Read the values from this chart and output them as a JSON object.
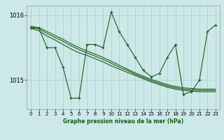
{
  "bg_color": "#cce8e8",
  "grid_color": "#aacccc",
  "line_color": "#1a5c1a",
  "xlabel": "Graphe pression niveau de la mer (hPa)",
  "xlim": [
    -0.5,
    23.5
  ],
  "ylim": [
    1014.55,
    1016.15
  ],
  "yticks": [
    1015,
    1016
  ],
  "xticks": [
    0,
    1,
    2,
    3,
    4,
    5,
    6,
    7,
    8,
    9,
    10,
    11,
    12,
    13,
    14,
    15,
    16,
    17,
    18,
    19,
    20,
    21,
    22,
    23
  ],
  "y_vol": [
    1015.8,
    1015.8,
    1015.5,
    1015.5,
    1015.2,
    1014.72,
    1014.72,
    1015.55,
    1015.55,
    1015.5,
    1016.05,
    1015.75,
    1015.55,
    1015.35,
    1015.15,
    1015.05,
    1015.1,
    1015.35,
    1015.55,
    1014.78,
    1014.82,
    1015.0,
    1015.75,
    1015.85
  ],
  "y_s1": [
    1015.8,
    1015.76,
    1015.68,
    1015.62,
    1015.55,
    1015.48,
    1015.42,
    1015.38,
    1015.33,
    1015.28,
    1015.22,
    1015.17,
    1015.12,
    1015.07,
    1015.02,
    1014.97,
    1014.93,
    1014.89,
    1014.86,
    1014.84,
    1014.83,
    1014.82,
    1014.82,
    1014.82
  ],
  "y_s2": [
    1015.82,
    1015.79,
    1015.72,
    1015.66,
    1015.6,
    1015.53,
    1015.47,
    1015.42,
    1015.37,
    1015.32,
    1015.26,
    1015.2,
    1015.15,
    1015.09,
    1015.04,
    1014.99,
    1014.95,
    1014.91,
    1014.88,
    1014.86,
    1014.85,
    1014.84,
    1014.84,
    1014.84
  ],
  "y_s3": [
    1015.83,
    1015.81,
    1015.75,
    1015.69,
    1015.63,
    1015.56,
    1015.5,
    1015.45,
    1015.4,
    1015.35,
    1015.29,
    1015.23,
    1015.17,
    1015.11,
    1015.06,
    1015.01,
    1014.97,
    1014.93,
    1014.9,
    1014.88,
    1014.87,
    1014.86,
    1014.86,
    1014.86
  ]
}
